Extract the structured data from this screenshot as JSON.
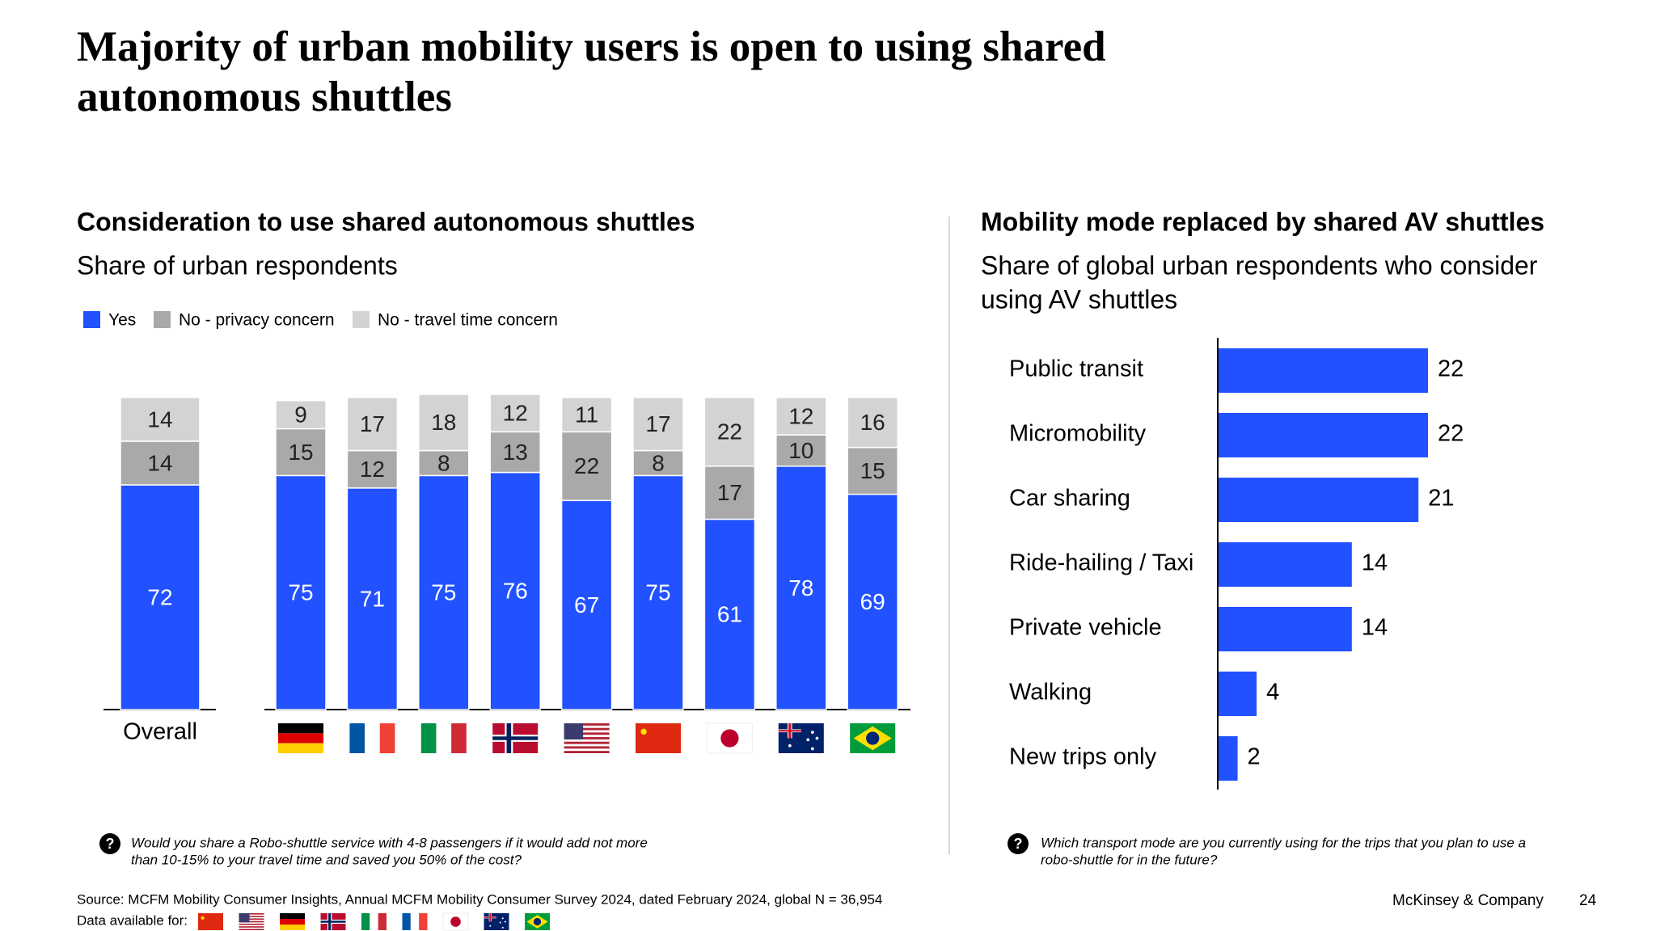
{
  "title_lines": [
    "Majority of urban mobility users is open to using shared",
    "autonomous shuttles"
  ],
  "chart_data": [
    {
      "type": "stacked-bar",
      "title": "Consideration to use shared autonomous shuttles",
      "subtitle": "Share of urban respondents",
      "categories": [
        "Overall",
        null,
        null,
        null,
        null,
        null,
        null,
        null,
        null,
        null
      ],
      "series": [
        {
          "name": "Yes",
          "color": "#2251ff",
          "values": [
            72,
            75,
            71,
            75,
            76,
            67,
            75,
            61,
            78,
            69
          ]
        },
        {
          "name": "No - privacy concern",
          "color": "#a9a9a9",
          "values": [
            14,
            15,
            12,
            8,
            13,
            22,
            8,
            17,
            10,
            15
          ]
        },
        {
          "name": "No - travel time concern",
          "color": "#d3d3d3",
          "values": [
            14,
            9,
            17,
            18,
            12,
            11,
            17,
            22,
            12,
            16
          ]
        }
      ],
      "footnote_lines": [
        "Would you share a Robo-shuttle service with 4-8 passengers if it would add not more",
        "than 10-15% to your travel time and saved you 50% of the cost?"
      ]
    },
    {
      "type": "hbar",
      "title": "Mobility mode replaced by shared AV shuttles",
      "subtitle_lines": [
        "Share of global urban respondents who consider",
        "using AV shuttles"
      ],
      "categories": [
        "Public transit",
        "Micromobility",
        "Car sharing",
        "Ride-hailing / Taxi",
        "Private vehicle",
        "Walking",
        "New trips only"
      ],
      "values": [
        22,
        22,
        21,
        14,
        14,
        4,
        2
      ],
      "color": "#2251ff",
      "footnote_lines": [
        "Which transport mode are you currently using for the trips that you plan to use a",
        "robo-shuttle for in the future?"
      ]
    }
  ],
  "source": "Source: MCFM Mobility Consumer Insights, Annual MCFM Mobility Consumer Survey 2024, dated February 2024, global N = 36,954",
  "data_available": "Data available for:",
  "company": "McKinsey & Company",
  "page": "24"
}
